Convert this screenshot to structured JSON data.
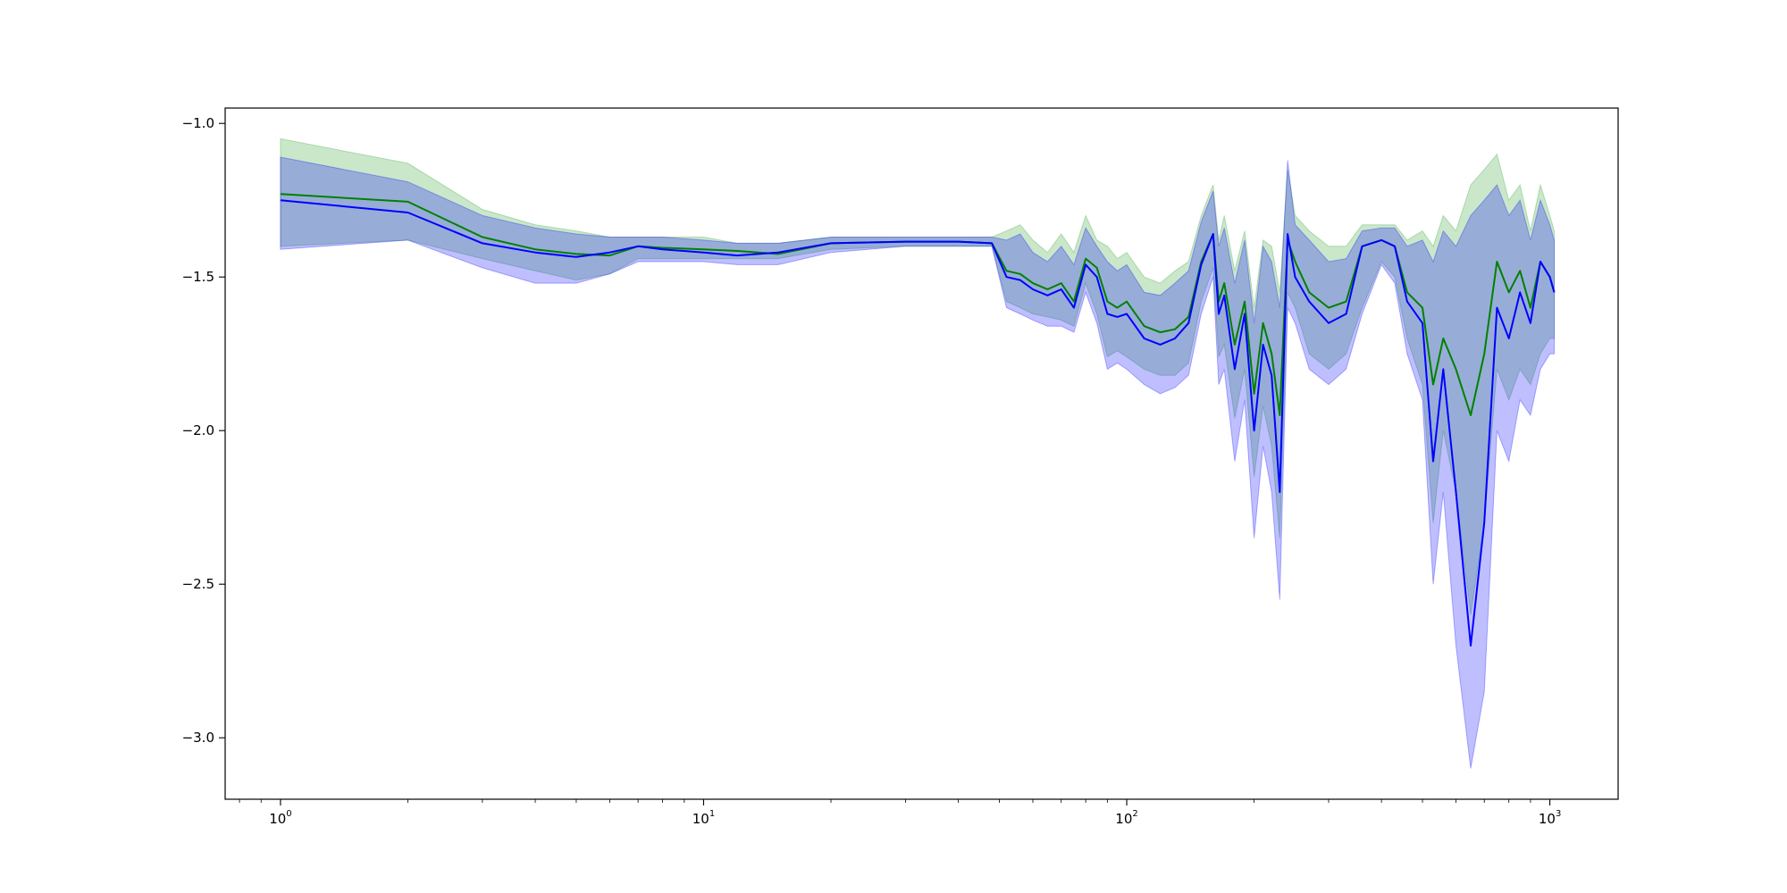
{
  "chart_data": {
    "type": "line",
    "title": "",
    "xlabel": "",
    "ylabel": "",
    "xscale": "log",
    "xlim": [
      0.74,
      1450
    ],
    "ylim": [
      -3.2,
      -0.95
    ],
    "grid": false,
    "legend": "none",
    "x_ticks": [
      {
        "base": "10",
        "exp": "0",
        "value": 1
      },
      {
        "base": "10",
        "exp": "1",
        "value": 10
      },
      {
        "base": "10",
        "exp": "2",
        "value": 100
      },
      {
        "base": "10",
        "exp": "3",
        "value": 1000
      }
    ],
    "y_ticks": [
      {
        "label": "−1.0",
        "value": -1.0
      },
      {
        "label": "−1.5",
        "value": -1.5
      },
      {
        "label": "−2.0",
        "value": -2.0
      },
      {
        "label": "−2.5",
        "value": -2.5
      },
      {
        "label": "−3.0",
        "value": -3.0
      }
    ],
    "series": [
      {
        "color": "#008000",
        "band_color": "#2ca02c",
        "x": [
          1,
          2,
          3,
          4,
          5,
          6,
          7,
          8,
          10,
          12,
          15,
          20,
          30,
          40,
          48,
          52,
          56,
          60,
          65,
          70,
          75,
          80,
          85,
          90,
          95,
          100,
          110,
          120,
          130,
          140,
          150,
          160,
          165,
          170,
          180,
          190,
          200,
          210,
          220,
          230,
          240,
          250,
          270,
          300,
          330,
          360,
          400,
          430,
          460,
          500,
          530,
          560,
          600,
          650,
          700,
          750,
          800,
          850,
          900,
          950,
          1000,
          1024
        ],
        "y": [
          -1.23,
          -1.255,
          -1.37,
          -1.41,
          -1.425,
          -1.43,
          -1.4,
          -1.405,
          -1.41,
          -1.415,
          -1.425,
          -1.39,
          -1.385,
          -1.385,
          -1.39,
          -1.48,
          -1.49,
          -1.52,
          -1.54,
          -1.52,
          -1.58,
          -1.44,
          -1.47,
          -1.58,
          -1.6,
          -1.58,
          -1.66,
          -1.68,
          -1.67,
          -1.63,
          -1.45,
          -1.36,
          -1.58,
          -1.52,
          -1.72,
          -1.58,
          -1.88,
          -1.65,
          -1.75,
          -1.95,
          -1.38,
          -1.45,
          -1.55,
          -1.6,
          -1.58,
          -1.4,
          -1.38,
          -1.4,
          -1.55,
          -1.6,
          -1.85,
          -1.7,
          -1.8,
          -1.95,
          -1.75,
          -1.45,
          -1.55,
          -1.48,
          -1.6,
          -1.45,
          -1.5,
          -1.55
        ],
        "lower": [
          -1.4,
          -1.38,
          -1.44,
          -1.48,
          -1.51,
          -1.49,
          -1.44,
          -1.44,
          -1.44,
          -1.44,
          -1.44,
          -1.41,
          -1.4,
          -1.4,
          -1.4,
          -1.58,
          -1.6,
          -1.62,
          -1.63,
          -1.64,
          -1.66,
          -1.52,
          -1.62,
          -1.76,
          -1.74,
          -1.76,
          -1.8,
          -1.82,
          -1.82,
          -1.78,
          -1.58,
          -1.47,
          -1.76,
          -1.72,
          -1.96,
          -1.8,
          -2.15,
          -1.92,
          -2.05,
          -2.35,
          -1.55,
          -1.6,
          -1.75,
          -1.8,
          -1.75,
          -1.6,
          -1.45,
          -1.5,
          -1.7,
          -1.85,
          -2.3,
          -2.0,
          -2.2,
          -2.6,
          -2.3,
          -1.8,
          -1.9,
          -1.8,
          -1.85,
          -1.75,
          -1.7,
          -1.7
        ],
        "upper": [
          -1.05,
          -1.13,
          -1.28,
          -1.33,
          -1.35,
          -1.37,
          -1.37,
          -1.37,
          -1.37,
          -1.39,
          -1.39,
          -1.37,
          -1.37,
          -1.37,
          -1.37,
          -1.35,
          -1.33,
          -1.38,
          -1.42,
          -1.36,
          -1.42,
          -1.3,
          -1.38,
          -1.4,
          -1.44,
          -1.42,
          -1.5,
          -1.52,
          -1.48,
          -1.45,
          -1.3,
          -1.2,
          -1.38,
          -1.3,
          -1.48,
          -1.35,
          -1.6,
          -1.38,
          -1.4,
          -1.55,
          -1.15,
          -1.3,
          -1.35,
          -1.4,
          -1.4,
          -1.33,
          -1.33,
          -1.33,
          -1.38,
          -1.35,
          -1.4,
          -1.3,
          -1.35,
          -1.2,
          -1.15,
          -1.1,
          -1.25,
          -1.2,
          -1.35,
          -1.2,
          -1.3,
          -1.35
        ]
      },
      {
        "color": "#0000ff",
        "band_color": "#0000ff",
        "x": [
          1,
          2,
          3,
          4,
          5,
          6,
          7,
          8,
          10,
          12,
          15,
          20,
          30,
          40,
          48,
          52,
          56,
          60,
          65,
          70,
          75,
          80,
          85,
          90,
          95,
          100,
          110,
          120,
          130,
          140,
          150,
          160,
          165,
          170,
          180,
          190,
          200,
          210,
          220,
          230,
          240,
          250,
          270,
          300,
          330,
          360,
          400,
          430,
          460,
          500,
          530,
          560,
          600,
          650,
          700,
          750,
          800,
          850,
          900,
          950,
          1000,
          1024
        ],
        "y": [
          -1.25,
          -1.29,
          -1.39,
          -1.42,
          -1.435,
          -1.42,
          -1.4,
          -1.41,
          -1.42,
          -1.43,
          -1.42,
          -1.39,
          -1.385,
          -1.385,
          -1.39,
          -1.5,
          -1.51,
          -1.54,
          -1.56,
          -1.54,
          -1.6,
          -1.46,
          -1.5,
          -1.62,
          -1.63,
          -1.62,
          -1.7,
          -1.72,
          -1.7,
          -1.65,
          -1.46,
          -1.36,
          -1.62,
          -1.56,
          -1.8,
          -1.62,
          -2.0,
          -1.72,
          -1.82,
          -2.2,
          -1.36,
          -1.5,
          -1.58,
          -1.65,
          -1.62,
          -1.4,
          -1.38,
          -1.4,
          -1.58,
          -1.65,
          -2.1,
          -1.8,
          -2.2,
          -2.7,
          -2.3,
          -1.6,
          -1.7,
          -1.55,
          -1.65,
          -1.45,
          -1.5,
          -1.55
        ],
        "lower": [
          -1.41,
          -1.38,
          -1.47,
          -1.52,
          -1.52,
          -1.49,
          -1.45,
          -1.45,
          -1.45,
          -1.46,
          -1.46,
          -1.42,
          -1.4,
          -1.4,
          -1.4,
          -1.6,
          -1.62,
          -1.64,
          -1.66,
          -1.66,
          -1.68,
          -1.55,
          -1.65,
          -1.8,
          -1.78,
          -1.8,
          -1.85,
          -1.88,
          -1.86,
          -1.82,
          -1.62,
          -1.5,
          -1.85,
          -1.8,
          -2.1,
          -1.9,
          -2.35,
          -2.05,
          -2.2,
          -2.55,
          -1.6,
          -1.65,
          -1.8,
          -1.85,
          -1.8,
          -1.62,
          -1.46,
          -1.52,
          -1.75,
          -1.9,
          -2.5,
          -2.2,
          -2.7,
          -3.1,
          -2.85,
          -2.0,
          -2.1,
          -1.9,
          -1.95,
          -1.8,
          -1.75,
          -1.75
        ],
        "upper": [
          -1.11,
          -1.19,
          -1.3,
          -1.34,
          -1.36,
          -1.37,
          -1.37,
          -1.37,
          -1.38,
          -1.39,
          -1.39,
          -1.37,
          -1.37,
          -1.37,
          -1.37,
          -1.38,
          -1.36,
          -1.42,
          -1.45,
          -1.4,
          -1.46,
          -1.34,
          -1.4,
          -1.45,
          -1.48,
          -1.46,
          -1.55,
          -1.56,
          -1.52,
          -1.48,
          -1.32,
          -1.22,
          -1.4,
          -1.34,
          -1.52,
          -1.38,
          -1.65,
          -1.4,
          -1.45,
          -1.6,
          -1.12,
          -1.33,
          -1.38,
          -1.45,
          -1.44,
          -1.35,
          -1.34,
          -1.34,
          -1.4,
          -1.38,
          -1.45,
          -1.35,
          -1.4,
          -1.3,
          -1.25,
          -1.2,
          -1.3,
          -1.25,
          -1.38,
          -1.25,
          -1.33,
          -1.38
        ]
      }
    ]
  }
}
